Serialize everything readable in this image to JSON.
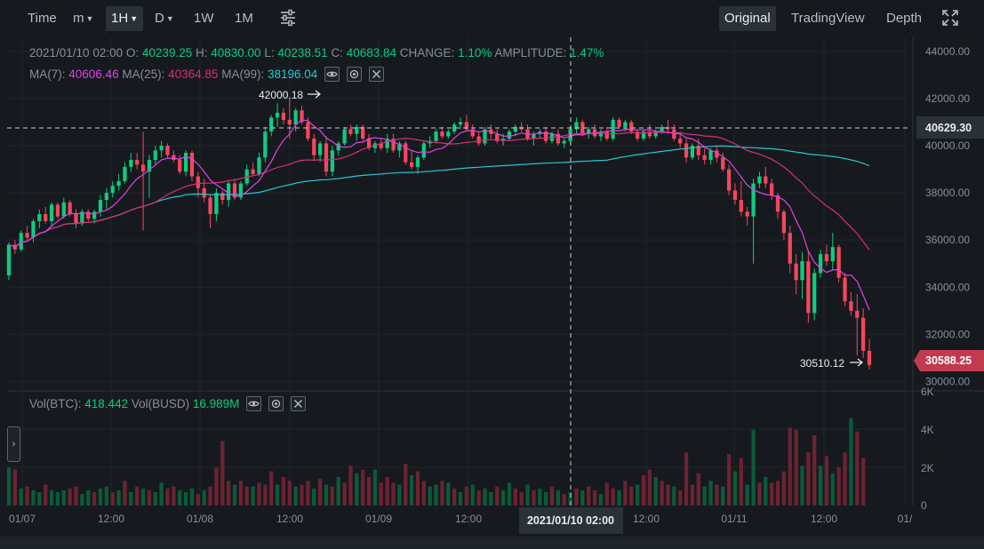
{
  "toolbar": {
    "time_label": "Time",
    "minute_label": "m",
    "hour_label": "1H",
    "day_label": "D",
    "week_label": "1W",
    "month_label": "1M",
    "views": [
      "Original",
      "TradingView",
      "Depth"
    ],
    "active_view": "Original",
    "icons": [
      "chart-settings-icon",
      "fullscreen-icon"
    ]
  },
  "ohlc": {
    "date": "2021/01/10 02:00",
    "o_label": "O:",
    "o": "40239.25",
    "h_label": "H:",
    "h": "40830.00",
    "l_label": "L:",
    "l": "40238.51",
    "c_label": "C:",
    "c": "40683.84",
    "change_label": "CHANGE:",
    "change": "1.10%",
    "amp_label": "AMPLITUDE:",
    "amp": "1.47%"
  },
  "ma": {
    "ma7_label": "MA(7):",
    "ma7": "40606.46",
    "ma25_label": "MA(25):",
    "ma25": "40364.85",
    "ma99_label": "MA(99):",
    "ma99": "38196.04"
  },
  "vol": {
    "btc_label": "Vol(BTC):",
    "btc": "418.442",
    "busd_label": "Vol(BUSD)",
    "busd": "16.989M"
  },
  "colors": {
    "up": "#0ecb81",
    "down": "#f6465d",
    "ma7": "#e141e8",
    "ma25": "#d82f74",
    "ma99": "#28c7cf"
  },
  "price_axis": {
    "ticks": [
      "44000.00",
      "42000.00",
      "40000.00",
      "38000.00",
      "36000.00",
      "34000.00",
      "32000.00",
      "30000.00"
    ]
  },
  "volume_axis": {
    "ticks": [
      "6K",
      "4K",
      "2K",
      "0"
    ]
  },
  "time_axis": {
    "ticks": [
      "01/07",
      "12:00",
      "01/08",
      "12:00",
      "01/09",
      "12:00",
      "12:00",
      "01/11",
      "12:00",
      "01/"
    ]
  },
  "crosshair": {
    "time_label": "2021/01/10 02:00",
    "price_label": "40629.30"
  },
  "last_price_label": "30588.25",
  "annotations": {
    "high_label": "42000.18",
    "low_label": "30510.12"
  },
  "chart_data": {
    "type": "candlestick",
    "interval": "1H",
    "price_range": [
      29600,
      44600
    ],
    "volume_range": [
      0,
      6000
    ],
    "candles_ohlc": [
      [
        34500,
        35900,
        34300,
        35800
      ],
      [
        35800,
        36000,
        35400,
        35600
      ],
      [
        35600,
        36400,
        35500,
        36300
      ],
      [
        36300,
        36600,
        36000,
        36100
      ],
      [
        36100,
        36900,
        35900,
        36800
      ],
      [
        36800,
        37300,
        36500,
        37100
      ],
      [
        37100,
        37400,
        36700,
        36800
      ],
      [
        36800,
        37600,
        36600,
        37500
      ],
      [
        37500,
        37600,
        36900,
        37000
      ],
      [
        37000,
        37800,
        36900,
        37600
      ],
      [
        37600,
        37700,
        37000,
        37100
      ],
      [
        37100,
        37300,
        36500,
        36700
      ],
      [
        36700,
        37300,
        36600,
        37200
      ],
      [
        37200,
        37300,
        36800,
        36900
      ],
      [
        36900,
        37300,
        36700,
        37200
      ],
      [
        37200,
        37900,
        37000,
        37700
      ],
      [
        37700,
        38200,
        37300,
        38000
      ],
      [
        38000,
        38500,
        37800,
        38300
      ],
      [
        38300,
        38800,
        38100,
        38500
      ],
      [
        38500,
        39300,
        38400,
        39100
      ],
      [
        39100,
        39700,
        38900,
        39400
      ],
      [
        39400,
        39700,
        39000,
        39200
      ],
      [
        39200,
        40600,
        36400,
        38900
      ],
      [
        38900,
        39600,
        37800,
        39400
      ],
      [
        39400,
        40000,
        39200,
        39800
      ],
      [
        39800,
        40200,
        39500,
        40000
      ],
      [
        40000,
        40100,
        39500,
        39600
      ],
      [
        39600,
        39800,
        39300,
        39400
      ],
      [
        39400,
        39600,
        38800,
        38900
      ],
      [
        38900,
        39800,
        38700,
        39700
      ],
      [
        39700,
        39800,
        38500,
        38700
      ],
      [
        38700,
        38900,
        37800,
        38200
      ],
      [
        38200,
        38600,
        37600,
        37800
      ],
      [
        37800,
        37900,
        36500,
        37100
      ],
      [
        37100,
        38200,
        36800,
        38000
      ],
      [
        38000,
        38100,
        37500,
        37700
      ],
      [
        37700,
        38500,
        37400,
        38400
      ],
      [
        38400,
        38600,
        37700,
        37800
      ],
      [
        37800,
        38500,
        37700,
        38400
      ],
      [
        38400,
        39200,
        38300,
        39000
      ],
      [
        39000,
        39300,
        38700,
        38800
      ],
      [
        38800,
        39700,
        38700,
        39500
      ],
      [
        39500,
        40800,
        39300,
        40600
      ],
      [
        40600,
        41300,
        40400,
        41200
      ],
      [
        41200,
        41800,
        40800,
        41400
      ],
      [
        41400,
        41600,
        40900,
        41100
      ],
      [
        41100,
        42000,
        40300,
        40900
      ],
      [
        40900,
        41600,
        40600,
        41500
      ],
      [
        41500,
        41700,
        40900,
        41000
      ],
      [
        41000,
        41200,
        40200,
        40300
      ],
      [
        40300,
        40500,
        39400,
        39600
      ],
      [
        39600,
        40200,
        39300,
        40100
      ],
      [
        40100,
        40400,
        38700,
        38900
      ],
      [
        38900,
        40000,
        38700,
        39800
      ],
      [
        39800,
        40200,
        39600,
        40100
      ],
      [
        40100,
        40800,
        40000,
        40700
      ],
      [
        40700,
        40900,
        40400,
        40500
      ],
      [
        40500,
        40900,
        40200,
        40800
      ],
      [
        40800,
        40900,
        40200,
        40300
      ],
      [
        40300,
        40500,
        39800,
        39900
      ],
      [
        39900,
        40200,
        39700,
        40100
      ],
      [
        40100,
        40300,
        39800,
        39900
      ],
      [
        39900,
        40500,
        39700,
        40300
      ],
      [
        40300,
        40500,
        39700,
        39800
      ],
      [
        39800,
        40200,
        39500,
        40100
      ],
      [
        40100,
        40200,
        39200,
        39300
      ],
      [
        39300,
        39800,
        39000,
        39100
      ],
      [
        39100,
        39600,
        38800,
        39500
      ],
      [
        39500,
        40200,
        39400,
        40100
      ],
      [
        40100,
        40400,
        39900,
        40200
      ],
      [
        40200,
        40700,
        40100,
        40600
      ],
      [
        40600,
        40800,
        40300,
        40400
      ],
      [
        40400,
        40700,
        40300,
        40600
      ],
      [
        40600,
        41000,
        40500,
        40900
      ],
      [
        40900,
        41200,
        40700,
        41000
      ],
      [
        41000,
        41300,
        40600,
        40700
      ],
      [
        40700,
        40900,
        40300,
        40400
      ],
      [
        40400,
        40600,
        40000,
        40100
      ],
      [
        40100,
        40800,
        40000,
        40700
      ],
      [
        40700,
        40900,
        40300,
        40500
      ],
      [
        40500,
        40700,
        40100,
        40200
      ],
      [
        40200,
        40500,
        40000,
        40300
      ],
      [
        40300,
        40700,
        40200,
        40600
      ],
      [
        40600,
        40900,
        40400,
        40800
      ],
      [
        40800,
        41000,
        40600,
        40700
      ],
      [
        40700,
        40900,
        40200,
        40300
      ],
      [
        40300,
        40600,
        40000,
        40500
      ],
      [
        40500,
        40700,
        40300,
        40600
      ],
      [
        40600,
        40800,
        40100,
        40200
      ],
      [
        40200,
        40600,
        40100,
        40500
      ],
      [
        40500,
        40700,
        40000,
        40100
      ],
      [
        40100,
        40300,
        39900,
        40200
      ],
      [
        40200,
        40800,
        40100,
        40700
      ],
      [
        40700,
        41200,
        40500,
        41000
      ],
      [
        41000,
        41100,
        40400,
        40500
      ],
      [
        40500,
        40800,
        40300,
        40700
      ],
      [
        40700,
        40900,
        40300,
        40400
      ],
      [
        40400,
        40700,
        40200,
        40600
      ],
      [
        40600,
        40800,
        40200,
        40300
      ],
      [
        40300,
        41200,
        40200,
        41100
      ],
      [
        41100,
        41200,
        40700,
        40800
      ],
      [
        40800,
        41100,
        40600,
        41000
      ],
      [
        41000,
        41100,
        40500,
        40600
      ],
      [
        40600,
        40700,
        40200,
        40300
      ],
      [
        40300,
        40700,
        40200,
        40600
      ],
      [
        40600,
        40900,
        40300,
        40400
      ],
      [
        40400,
        40700,
        40300,
        40600
      ],
      [
        40600,
        40900,
        40500,
        40800
      ],
      [
        40800,
        41100,
        40500,
        40700
      ],
      [
        40700,
        40900,
        40200,
        40300
      ],
      [
        40300,
        40600,
        39900,
        40100
      ],
      [
        40100,
        40300,
        39300,
        39500
      ],
      [
        39500,
        40100,
        39400,
        40000
      ],
      [
        40000,
        40300,
        39400,
        39600
      ],
      [
        39600,
        39900,
        39200,
        39400
      ],
      [
        39400,
        39900,
        39200,
        39800
      ],
      [
        39800,
        40000,
        39300,
        39500
      ],
      [
        39500,
        39700,
        38900,
        39000
      ],
      [
        39000,
        39200,
        37900,
        38100
      ],
      [
        38100,
        38400,
        37500,
        37700
      ],
      [
        37700,
        38500,
        37000,
        37200
      ],
      [
        37200,
        37400,
        36600,
        37000
      ],
      [
        37000,
        38600,
        35000,
        38400
      ],
      [
        38400,
        38900,
        38200,
        38700
      ],
      [
        38700,
        39100,
        38200,
        38400
      ],
      [
        38400,
        38600,
        37700,
        37900
      ],
      [
        37900,
        38000,
        36900,
        37200
      ],
      [
        37200,
        37300,
        36000,
        36300
      ],
      [
        36300,
        36600,
        34600,
        35000
      ],
      [
        35000,
        35400,
        33700,
        34300
      ],
      [
        34300,
        35500,
        33500,
        35100
      ],
      [
        35100,
        35500,
        32500,
        32900
      ],
      [
        32900,
        34800,
        32600,
        34600
      ],
      [
        34600,
        35600,
        34400,
        35400
      ],
      [
        35400,
        35800,
        34900,
        35100
      ],
      [
        35100,
        36300,
        34700,
        35700
      ],
      [
        35700,
        35800,
        34200,
        34400
      ],
      [
        34400,
        34600,
        33200,
        33400
      ],
      [
        33400,
        33800,
        32800,
        33000
      ],
      [
        33000,
        33700,
        31100,
        32700
      ],
      [
        32700,
        33100,
        31000,
        31300
      ],
      [
        31300,
        31800,
        30500,
        30700
      ]
    ],
    "volume_bars": [
      [
        2000,
        1
      ],
      [
        1900,
        0
      ],
      [
        900,
        1
      ],
      [
        1000,
        0
      ],
      [
        800,
        1
      ],
      [
        700,
        1
      ],
      [
        1100,
        0
      ],
      [
        800,
        1
      ],
      [
        700,
        1
      ],
      [
        800,
        1
      ],
      [
        900,
        0
      ],
      [
        1000,
        0
      ],
      [
        600,
        1
      ],
      [
        800,
        1
      ],
      [
        700,
        0
      ],
      [
        900,
        1
      ],
      [
        1000,
        1
      ],
      [
        700,
        0
      ],
      [
        800,
        1
      ],
      [
        1300,
        0
      ],
      [
        700,
        1
      ],
      [
        1000,
        0
      ],
      [
        900,
        1
      ],
      [
        800,
        0
      ],
      [
        700,
        1
      ],
      [
        1200,
        1
      ],
      [
        900,
        0
      ],
      [
        1000,
        0
      ],
      [
        800,
        1
      ],
      [
        700,
        1
      ],
      [
        900,
        1
      ],
      [
        600,
        0
      ],
      [
        800,
        1
      ],
      [
        1000,
        0
      ],
      [
        2000,
        0
      ],
      [
        3400,
        0
      ],
      [
        1300,
        0
      ],
      [
        1100,
        1
      ],
      [
        1300,
        0
      ],
      [
        1000,
        0
      ],
      [
        1000,
        1
      ],
      [
        1200,
        0
      ],
      [
        1100,
        0
      ],
      [
        1800,
        0
      ],
      [
        1100,
        1
      ],
      [
        1500,
        0
      ],
      [
        1300,
        0
      ],
      [
        1000,
        1
      ],
      [
        1100,
        0
      ],
      [
        1300,
        0
      ],
      [
        900,
        1
      ],
      [
        1400,
        0
      ],
      [
        1100,
        1
      ],
      [
        1000,
        0
      ],
      [
        1500,
        1
      ],
      [
        1200,
        0
      ],
      [
        2100,
        0
      ],
      [
        1700,
        1
      ],
      [
        1900,
        0
      ],
      [
        1500,
        0
      ],
      [
        1900,
        1
      ],
      [
        1200,
        0
      ],
      [
        1500,
        0
      ],
      [
        1200,
        0
      ],
      [
        1100,
        1
      ],
      [
        2200,
        0
      ],
      [
        1600,
        1
      ],
      [
        1800,
        0
      ],
      [
        1300,
        0
      ],
      [
        1000,
        1
      ],
      [
        1100,
        1
      ],
      [
        1300,
        0
      ],
      [
        1200,
        1
      ],
      [
        900,
        0
      ],
      [
        700,
        1
      ],
      [
        1000,
        0
      ],
      [
        1100,
        1
      ],
      [
        800,
        0
      ],
      [
        900,
        1
      ],
      [
        700,
        1
      ],
      [
        1000,
        0
      ],
      [
        800,
        1
      ],
      [
        1200,
        1
      ],
      [
        900,
        0
      ],
      [
        700,
        0
      ],
      [
        1100,
        1
      ],
      [
        800,
        0
      ],
      [
        900,
        1
      ],
      [
        700,
        1
      ],
      [
        1000,
        0
      ],
      [
        800,
        1
      ],
      [
        600,
        0
      ],
      [
        700,
        1
      ],
      [
        900,
        0
      ],
      [
        800,
        1
      ],
      [
        1000,
        0
      ],
      [
        800,
        0
      ],
      [
        600,
        1
      ],
      [
        1200,
        0
      ],
      [
        900,
        0
      ],
      [
        800,
        1
      ],
      [
        1300,
        0
      ],
      [
        1000,
        0
      ],
      [
        1100,
        1
      ],
      [
        1600,
        0
      ],
      [
        1900,
        0
      ],
      [
        1500,
        1
      ],
      [
        1300,
        0
      ],
      [
        1100,
        0
      ],
      [
        1000,
        1
      ],
      [
        800,
        0
      ],
      [
        2800,
        0
      ],
      [
        1100,
        0
      ],
      [
        1700,
        0
      ],
      [
        1000,
        1
      ],
      [
        1300,
        1
      ],
      [
        1100,
        0
      ],
      [
        1000,
        1
      ],
      [
        2700,
        0
      ],
      [
        1800,
        1
      ],
      [
        2500,
        0
      ],
      [
        1100,
        1
      ],
      [
        4000,
        1
      ],
      [
        1200,
        0
      ],
      [
        1500,
        1
      ],
      [
        1200,
        0
      ],
      [
        1300,
        0
      ],
      [
        1800,
        0
      ],
      [
        4100,
        0
      ],
      [
        4000,
        0
      ],
      [
        2100,
        1
      ],
      [
        2800,
        0
      ],
      [
        3700,
        0
      ],
      [
        2100,
        1
      ],
      [
        2600,
        0
      ],
      [
        1700,
        1
      ],
      [
        2000,
        0
      ],
      [
        2800,
        0
      ],
      [
        4600,
        1
      ],
      [
        3900,
        0
      ],
      [
        2500,
        0
      ]
    ]
  }
}
